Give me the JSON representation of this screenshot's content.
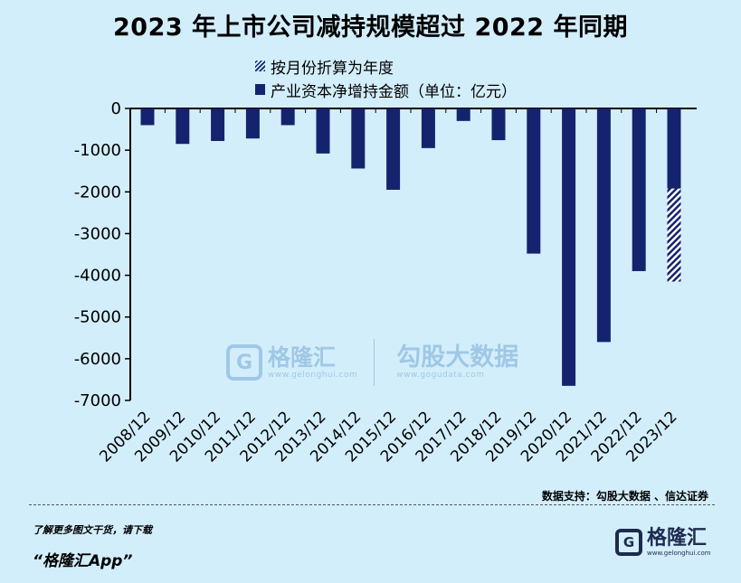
{
  "chart_data": {
    "type": "bar",
    "title": "2023 年上市公司减持规模超过 2022 年同期",
    "categories": [
      "2008/12",
      "2009/12",
      "2010/12",
      "2011/12",
      "2012/12",
      "2013/12",
      "2014/12",
      "2015/12",
      "2016/12",
      "2017/12",
      "2018/12",
      "2019/12",
      "2020/12",
      "2021/12",
      "2022/12",
      "2023/12"
    ],
    "series": [
      {
        "name": "产业资本净增持金额（单位：亿元）",
        "values": [
          -400,
          -850,
          -780,
          -720,
          -400,
          -1080,
          -1440,
          -1950,
          -950,
          -300,
          -760,
          -3480,
          -6650,
          -5600,
          -3900,
          -1920
        ],
        "color": "#14236e"
      },
      {
        "name": "按月份折算为年度",
        "values": [
          null,
          null,
          null,
          null,
          null,
          null,
          null,
          null,
          null,
          null,
          null,
          null,
          null,
          null,
          null,
          -4150
        ],
        "color": "#14236e",
        "pattern": "hatch"
      }
    ],
    "yticks": [
      "0",
      "-1000",
      "-2000",
      "-3000",
      "-4000",
      "-5000",
      "-6000",
      "-7000"
    ],
    "ylim": [
      -7000,
      0
    ],
    "xlabel": "",
    "ylabel": ""
  },
  "legend": {
    "hatch_label": "按月份折算为年度",
    "solid_label": "产业资本净增持金额（单位：亿元）"
  },
  "watermark": {
    "brand1_logo_char": "G",
    "brand1_name": "格隆汇",
    "brand1_url": "www.gelonghui.com",
    "brand2_name": "勾股大数据",
    "brand2_url": "www.gogudata.com"
  },
  "source": "数据支持：勾股大数据 、信达证券",
  "footer": {
    "cta": "了解更多图文干货，请下载",
    "app": "“格隆汇App”",
    "logo_char": "G",
    "logo_name": "格隆汇",
    "logo_url": "www.gelonghui.com"
  }
}
